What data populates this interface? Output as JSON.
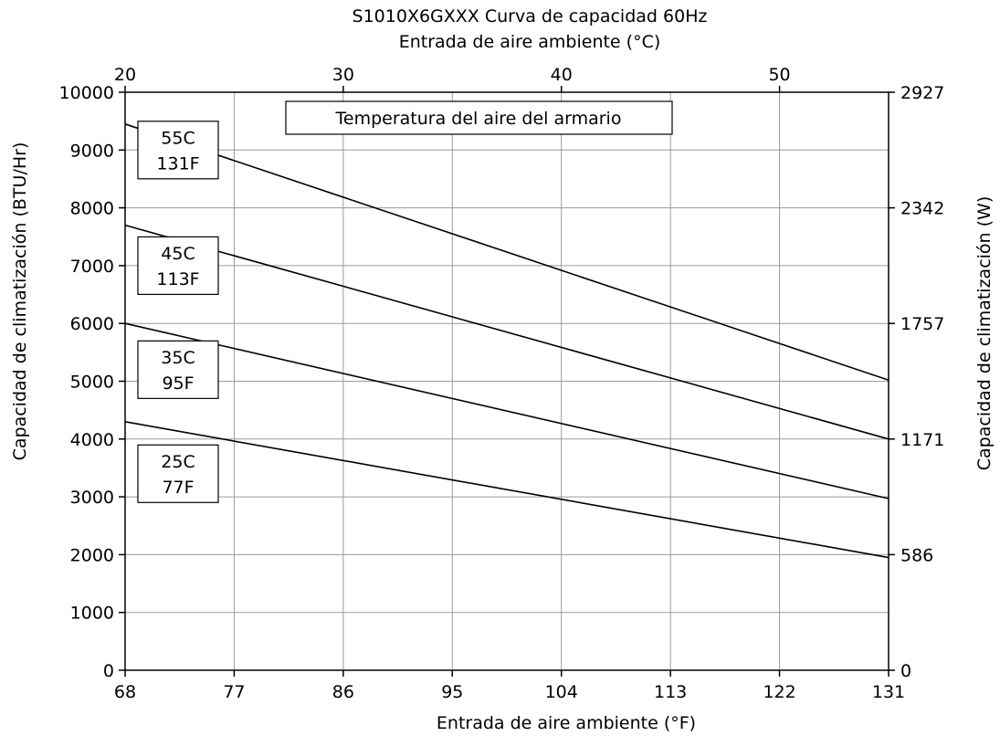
{
  "chart_data": {
    "type": "line",
    "title": "S1010X6GXXX Curva de capacidad 60Hz",
    "top_xlabel": "Entrada de aire ambiente (°C)",
    "xlabel": "Entrada de aire ambiente (°F)",
    "ylabel": "Capacidad de climatización (BTU/Hr)",
    "y2label": "Capacidad de climatización (W)",
    "legend_title": "Temperatura del aire del armario",
    "xlim": [
      68,
      131
    ],
    "ylim": [
      0,
      10000
    ],
    "x_ticks": [
      "68",
      "77",
      "86",
      "95",
      "104",
      "113",
      "122",
      "131"
    ],
    "x_tick_values": [
      68,
      77,
      86,
      95,
      104,
      113,
      122,
      131
    ],
    "top_x_ticks": [
      "20",
      "30",
      "40",
      "50"
    ],
    "top_x_tick_values_f": [
      68,
      86,
      104,
      122
    ],
    "y_ticks": [
      "0",
      "1000",
      "2000",
      "3000",
      "4000",
      "5000",
      "6000",
      "7000",
      "8000",
      "9000",
      "10000"
    ],
    "y_tick_values": [
      0,
      1000,
      2000,
      3000,
      4000,
      5000,
      6000,
      7000,
      8000,
      9000,
      10000
    ],
    "y2_ticks": [
      "0",
      "586",
      "1171",
      "1757",
      "2342",
      "2927"
    ],
    "y2_tick_values_btu": [
      0,
      2000,
      4000,
      6000,
      8000,
      10000
    ],
    "grid": true,
    "series": [
      {
        "label_c": "55C",
        "label_f": "131F",
        "label_y": 9000,
        "x": [
          68,
          131
        ],
        "y": [
          9450,
          5020
        ]
      },
      {
        "label_c": "45C",
        "label_f": "113F",
        "label_y": 7000,
        "x": [
          68,
          131
        ],
        "y": [
          7700,
          4000
        ]
      },
      {
        "label_c": "35C",
        "label_f": "95F",
        "label_y": 5200,
        "x": [
          68,
          131
        ],
        "y": [
          6000,
          2970
        ]
      },
      {
        "label_c": "25C",
        "label_f": "77F",
        "label_y": 3400,
        "x": [
          68,
          131
        ],
        "y": [
          4300,
          1950
        ]
      }
    ]
  }
}
